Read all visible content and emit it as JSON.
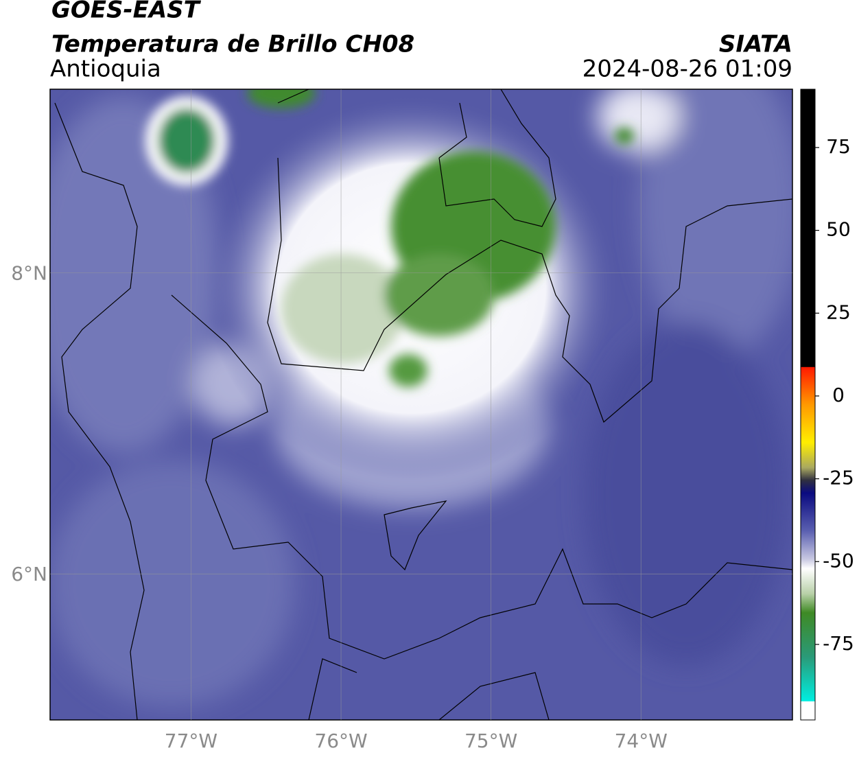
{
  "header": {
    "title": "GOES-EAST",
    "subtitle": "Temperatura de Brillo CH08",
    "region": "Antioquia",
    "source": "SIATA",
    "datetime": "2024-08-26 01:09"
  },
  "map": {
    "xlim": [
      -77.94,
      -72.99
    ],
    "ylim": [
      5.03,
      9.22
    ],
    "xticks": [
      {
        "value": -77,
        "label": "77°W"
      },
      {
        "value": -76,
        "label": "76°W"
      },
      {
        "value": -75,
        "label": "75°W"
      },
      {
        "value": -74,
        "label": "74°W"
      }
    ],
    "yticks": [
      {
        "value": 8,
        "label": "8°N"
      },
      {
        "value": 6,
        "label": "6°N"
      }
    ]
  },
  "colorbar": {
    "lim": [
      -97.8,
      92.6
    ],
    "ticks": [
      75,
      50,
      25,
      0,
      -25,
      -50,
      -75
    ]
  }
}
